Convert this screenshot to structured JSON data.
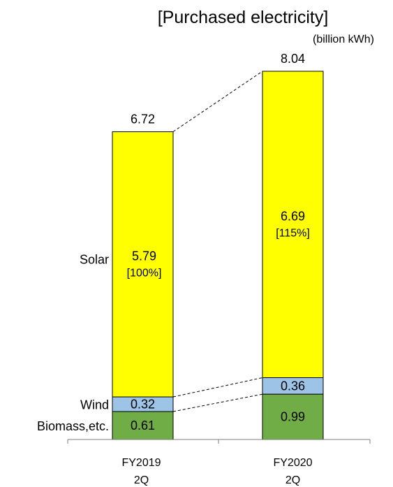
{
  "chart_data": {
    "type": "bar",
    "stacked": true,
    "title": "[Purchased electricity]",
    "unit": "(billion  kWh)",
    "categories": [
      "FY2019\n2Q",
      "FY2020\n2Q"
    ],
    "category_lines": [
      [
        "FY2019",
        "2Q"
      ],
      [
        "FY2020",
        "2Q"
      ]
    ],
    "series": [
      {
        "name": "Biomass,etc.",
        "values": [
          0.61,
          0.99
        ],
        "color": "#70AD47",
        "value_labels": [
          "0.61",
          "0.99"
        ]
      },
      {
        "name": "Wind",
        "values": [
          0.32,
          0.36
        ],
        "color": "#9DC3E6",
        "value_labels": [
          "0.32",
          "0.36"
        ]
      },
      {
        "name": "Solar",
        "values": [
          5.79,
          6.69
        ],
        "color": "#FFFF00",
        "value_labels": [
          "5.79",
          "6.69"
        ],
        "percent_labels": [
          "[100%]",
          "[115%]"
        ]
      }
    ],
    "totals": [
      6.72,
      8.04
    ],
    "total_labels": [
      "6.72",
      "8.04"
    ],
    "ylim": [
      0,
      8.04
    ],
    "grid": false
  }
}
